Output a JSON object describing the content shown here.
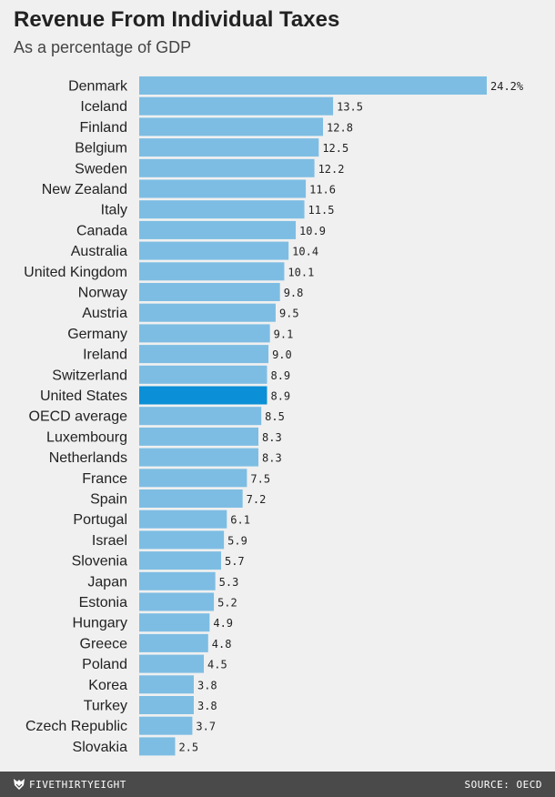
{
  "header": {
    "title": "Revenue From Individual Taxes",
    "subtitle": "As a percentage of GDP"
  },
  "footer": {
    "brand": "FIVETHIRTYEIGHT",
    "brand_icon": "fivethirtyeight-fox-logo-icon",
    "source": "SOURCE: OECD"
  },
  "colors": {
    "bar": "#7dbde3",
    "highlight": "#0b8fd6",
    "background": "#f0f0f0",
    "footer": "#4a4a4a"
  },
  "chart_data": {
    "type": "bar",
    "orientation": "horizontal",
    "title": "Revenue From Individual Taxes",
    "subtitle": "As a percentage of GDP",
    "categories": [
      "Denmark",
      "Iceland",
      "Finland",
      "Belgium",
      "Sweden",
      "New Zealand",
      "Italy",
      "Canada",
      "Australia",
      "United Kingdom",
      "Norway",
      "Austria",
      "Germany",
      "Ireland",
      "Switzerland",
      "United States",
      "OECD average",
      "Luxembourg",
      "Netherlands",
      "France",
      "Spain",
      "Portugal",
      "Israel",
      "Slovenia",
      "Japan",
      "Estonia",
      "Hungary",
      "Greece",
      "Poland",
      "Korea",
      "Turkey",
      "Czech Republic",
      "Slovakia"
    ],
    "values": [
      24.2,
      13.5,
      12.8,
      12.5,
      12.2,
      11.6,
      11.5,
      10.9,
      10.4,
      10.1,
      9.8,
      9.5,
      9.1,
      9.0,
      8.9,
      8.9,
      8.5,
      8.3,
      8.3,
      7.5,
      7.2,
      6.1,
      5.9,
      5.7,
      5.3,
      5.2,
      4.9,
      4.8,
      4.5,
      3.8,
      3.8,
      3.7,
      2.5
    ],
    "value_labels": [
      "24.2%",
      "13.5",
      "12.8",
      "12.5",
      "12.2",
      "11.6",
      "11.5",
      "10.9",
      "10.4",
      "10.1",
      "9.8",
      "9.5",
      "9.1",
      "9.0",
      "8.9",
      "8.9",
      "8.5",
      "8.3",
      "8.3",
      "7.5",
      "7.2",
      "6.1",
      "5.9",
      "5.7",
      "5.3",
      "5.2",
      "4.9",
      "4.8",
      "4.5",
      "3.8",
      "3.8",
      "3.7",
      "2.5"
    ],
    "highlight": "United States",
    "xlim": [
      0,
      24.2
    ],
    "grid": false,
    "legend": "none"
  }
}
